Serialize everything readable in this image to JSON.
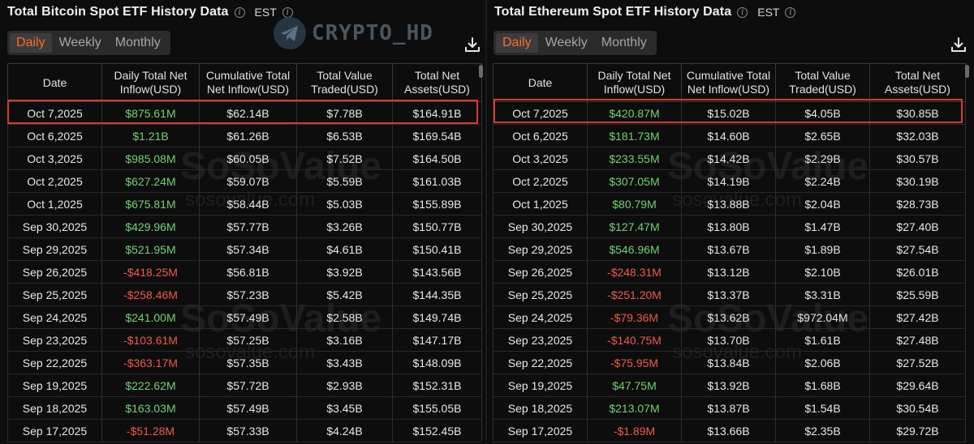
{
  "watermark_text": "CRYPTO_HD",
  "background_watermark": "SoSoValue",
  "background_watermark_sub": "sosovalue.com",
  "tabs": [
    "Daily",
    "Weekly",
    "Monthly"
  ],
  "active_tab": "Daily",
  "columns": [
    "Date",
    "Daily Total Net Inflow(USD)",
    "Cumulative Total Net Inflow(USD)",
    "Total Value Traded(USD)",
    "Total Net Assets(USD)"
  ],
  "btc": {
    "title": "Total Bitcoin Spot ETF History Data",
    "timezone": "EST",
    "rows": [
      [
        "Oct 7,2025",
        "$875.61M",
        "$62.14B",
        "$7.78B",
        "$164.91B"
      ],
      [
        "Oct 6,2025",
        "$1.21B",
        "$61.26B",
        "$6.53B",
        "$169.54B"
      ],
      [
        "Oct 3,2025",
        "$985.08M",
        "$60.05B",
        "$7.52B",
        "$164.50B"
      ],
      [
        "Oct 2,2025",
        "$627.24M",
        "$59.07B",
        "$5.59B",
        "$161.03B"
      ],
      [
        "Oct 1,2025",
        "$675.81M",
        "$58.44B",
        "$5.03B",
        "$155.89B"
      ],
      [
        "Sep 30,2025",
        "$429.96M",
        "$57.77B",
        "$3.26B",
        "$150.77B"
      ],
      [
        "Sep 29,2025",
        "$521.95M",
        "$57.34B",
        "$4.61B",
        "$150.41B"
      ],
      [
        "Sep 26,2025",
        "-$418.25M",
        "$56.81B",
        "$3.92B",
        "$143.56B"
      ],
      [
        "Sep 25,2025",
        "-$258.46M",
        "$57.23B",
        "$5.42B",
        "$144.35B"
      ],
      [
        "Sep 24,2025",
        "$241.00M",
        "$57.49B",
        "$2.58B",
        "$149.74B"
      ],
      [
        "Sep 23,2025",
        "-$103.61M",
        "$57.25B",
        "$3.16B",
        "$147.17B"
      ],
      [
        "Sep 22,2025",
        "-$363.17M",
        "$57.35B",
        "$3.43B",
        "$148.09B"
      ],
      [
        "Sep 19,2025",
        "$222.62M",
        "$57.72B",
        "$2.93B",
        "$152.31B"
      ],
      [
        "Sep 18,2025",
        "$163.03M",
        "$57.49B",
        "$3.45B",
        "$155.05B"
      ],
      [
        "Sep 17,2025",
        "-$51.28M",
        "$57.33B",
        "$4.24B",
        "$152.45B"
      ]
    ]
  },
  "eth": {
    "title": "Total Ethereum Spot ETF History Data",
    "timezone": "EST",
    "rows": [
      [
        "Oct 7,2025",
        "$420.87M",
        "$15.02B",
        "$4.05B",
        "$30.85B"
      ],
      [
        "Oct 6,2025",
        "$181.73M",
        "$14.60B",
        "$2.65B",
        "$32.03B"
      ],
      [
        "Oct 3,2025",
        "$233.55M",
        "$14.42B",
        "$2.29B",
        "$30.57B"
      ],
      [
        "Oct 2,2025",
        "$307.05M",
        "$14.19B",
        "$2.24B",
        "$30.19B"
      ],
      [
        "Oct 1,2025",
        "$80.79M",
        "$13.88B",
        "$2.04B",
        "$28.73B"
      ],
      [
        "Sep 30,2025",
        "$127.47M",
        "$13.80B",
        "$1.47B",
        "$27.40B"
      ],
      [
        "Sep 29,2025",
        "$546.96M",
        "$13.67B",
        "$1.89B",
        "$27.54B"
      ],
      [
        "Sep 26,2025",
        "-$248.31M",
        "$13.12B",
        "$2.10B",
        "$26.01B"
      ],
      [
        "Sep 25,2025",
        "-$251.20M",
        "$13.37B",
        "$3.31B",
        "$25.59B"
      ],
      [
        "Sep 24,2025",
        "-$79.36M",
        "$13.62B",
        "$972.04M",
        "$27.42B"
      ],
      [
        "Sep 23,2025",
        "-$140.75M",
        "$13.70B",
        "$1.61B",
        "$27.48B"
      ],
      [
        "Sep 22,2025",
        "-$75.95M",
        "$13.84B",
        "$2.06B",
        "$27.52B"
      ],
      [
        "Sep 19,2025",
        "$47.75M",
        "$13.92B",
        "$1.68B",
        "$29.64B"
      ],
      [
        "Sep 18,2025",
        "$213.07M",
        "$13.87B",
        "$1.54B",
        "$30.54B"
      ],
      [
        "Sep 17,2025",
        "-$1.89M",
        "$13.66B",
        "$2.35B",
        "$29.72B"
      ]
    ]
  },
  "colors": {
    "positive": "#6fd46f",
    "negative": "#f15a4a",
    "accent": "#ff6a2a",
    "highlight": "#d93a2c"
  }
}
